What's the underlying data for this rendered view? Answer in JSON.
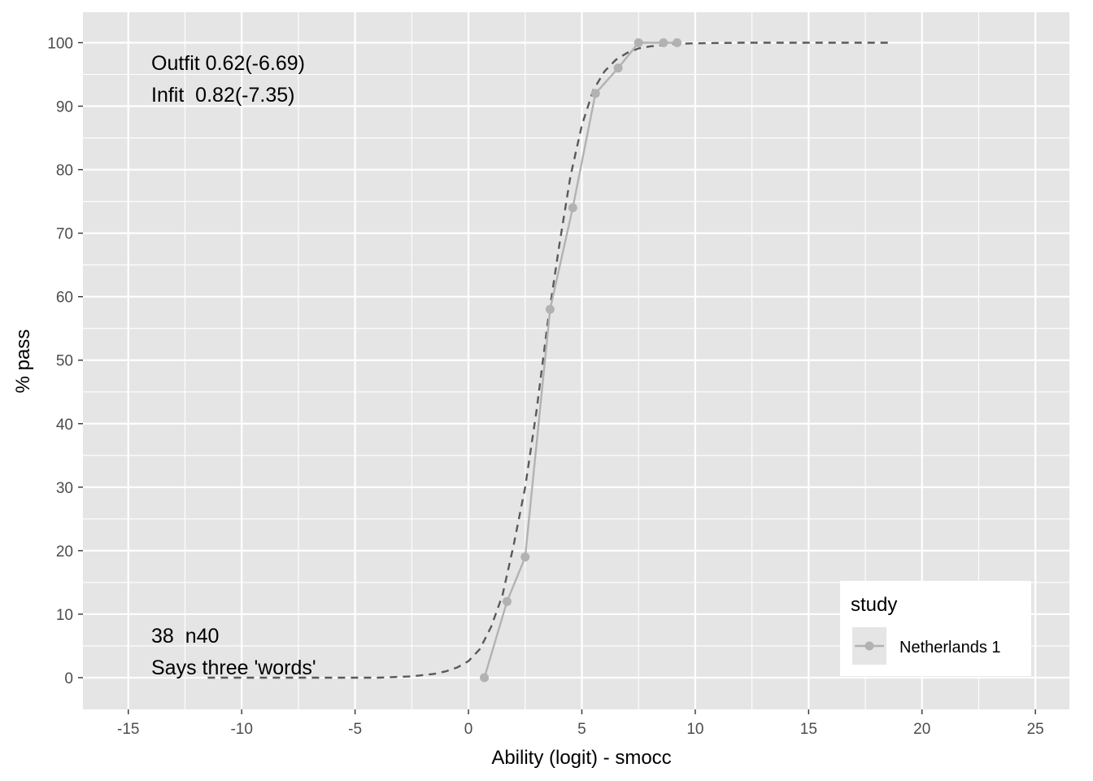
{
  "chart_data": {
    "type": "line",
    "xlabel": "Ability (logit) - smocc",
    "ylabel": "% pass",
    "xlim": [
      -17,
      26.5
    ],
    "ylim": [
      -5,
      104.8
    ],
    "x_ticks": [
      -15,
      -10,
      -5,
      0,
      5,
      10,
      15,
      20,
      25
    ],
    "y_ticks": [
      0,
      10,
      20,
      30,
      40,
      50,
      60,
      70,
      80,
      90,
      100
    ],
    "grid": true,
    "colors": {
      "panel": "#e5e5e5",
      "grid": "#ffffff",
      "observed": "#b2b2b2",
      "model": "#595959"
    },
    "series": [
      {
        "name": "Netherlands 1",
        "style": "solid-with-points",
        "x": [
          0.7,
          1.7,
          2.5,
          3.6,
          4.6,
          5.6,
          6.6,
          7.5,
          8.6,
          9.2
        ],
        "y": [
          0,
          12,
          19,
          58,
          74,
          92,
          96,
          100,
          100,
          100
        ]
      },
      {
        "style": "dashed",
        "x": [
          -11.5,
          -10,
          -8,
          -6,
          -4,
          -2.5,
          -1.5,
          -1,
          -0.5,
          0,
          0.5,
          1,
          1.5,
          2,
          2.5,
          3,
          3.5,
          4,
          4.5,
          5,
          5.5,
          6,
          6.5,
          7,
          7.5,
          8,
          9,
          10,
          12,
          15,
          18.5
        ],
        "y": [
          0,
          0,
          0,
          0,
          0,
          0.2,
          0.6,
          1.0,
          1.6,
          2.6,
          4.5,
          8,
          13,
          21,
          30,
          42,
          56,
          68,
          79,
          87,
          92.5,
          95.5,
          97.3,
          98.4,
          99.1,
          99.4,
          99.8,
          99.9,
          100,
          100,
          100
        ]
      }
    ],
    "legend": {
      "title": "study",
      "position": "bottom-right",
      "entries": [
        "Netherlands 1"
      ]
    },
    "annotations": {
      "top_line1": "Outfit 0.62(-6.69)",
      "top_line2": "Infit  0.82(-7.35)",
      "bottom_line1": "38  n40",
      "bottom_line2": "Says three 'words'"
    }
  }
}
